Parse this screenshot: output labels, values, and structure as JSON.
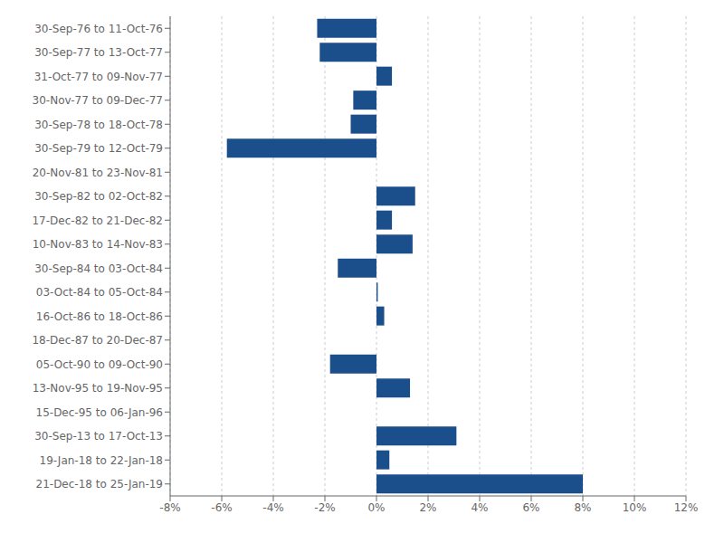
{
  "chart_data": {
    "type": "bar",
    "orientation": "horizontal",
    "categories": [
      "30-Sep-76 to 11-Oct-76",
      "30-Sep-77 to 13-Oct-77",
      "31-Oct-77 to 09-Nov-77",
      "30-Nov-77 to 09-Dec-77",
      "30-Sep-78 to 18-Oct-78",
      "30-Sep-79 to 12-Oct-79",
      "20-Nov-81 to 23-Nov-81",
      "30-Sep-82 to 02-Oct-82",
      "17-Dec-82 to 21-Dec-82",
      "10-Nov-83 to 14-Nov-83",
      "30-Sep-84 to 03-Oct-84",
      "03-Oct-84 to 05-Oct-84",
      "16-Oct-86 to 18-Oct-86",
      "18-Dec-87 to 20-Dec-87",
      "05-Oct-90 to 09-Oct-90",
      "13-Nov-95 to 19-Nov-95",
      "15-Dec-95 to 06-Jan-96",
      "30-Sep-13 to 17-Oct-13",
      "19-Jan-18 to 22-Jan-18",
      "21-Dec-18 to 25-Jan-19"
    ],
    "values": [
      -2.3,
      -2.2,
      0.6,
      -0.9,
      -1.0,
      -5.8,
      0.0,
      1.5,
      0.6,
      1.4,
      -1.5,
      0.05,
      0.3,
      0.0,
      -1.8,
      1.3,
      0.0,
      3.1,
      0.5,
      8.0
    ],
    "color": "#1b4f8c",
    "xlim": [
      -8,
      12
    ],
    "xticks": [
      {
        "value": -8,
        "label": "-8%"
      },
      {
        "value": -6,
        "label": "-6%"
      },
      {
        "value": -4,
        "label": "-4%"
      },
      {
        "value": -2,
        "label": "-2%"
      },
      {
        "value": 0,
        "label": "0%"
      },
      {
        "value": 2,
        "label": "2%"
      },
      {
        "value": 4,
        "label": "4%"
      },
      {
        "value": 6,
        "label": "6%"
      },
      {
        "value": 8,
        "label": "8%"
      },
      {
        "value": 10,
        "label": "10%"
      },
      {
        "value": 12,
        "label": "12%"
      }
    ],
    "grid": true
  }
}
